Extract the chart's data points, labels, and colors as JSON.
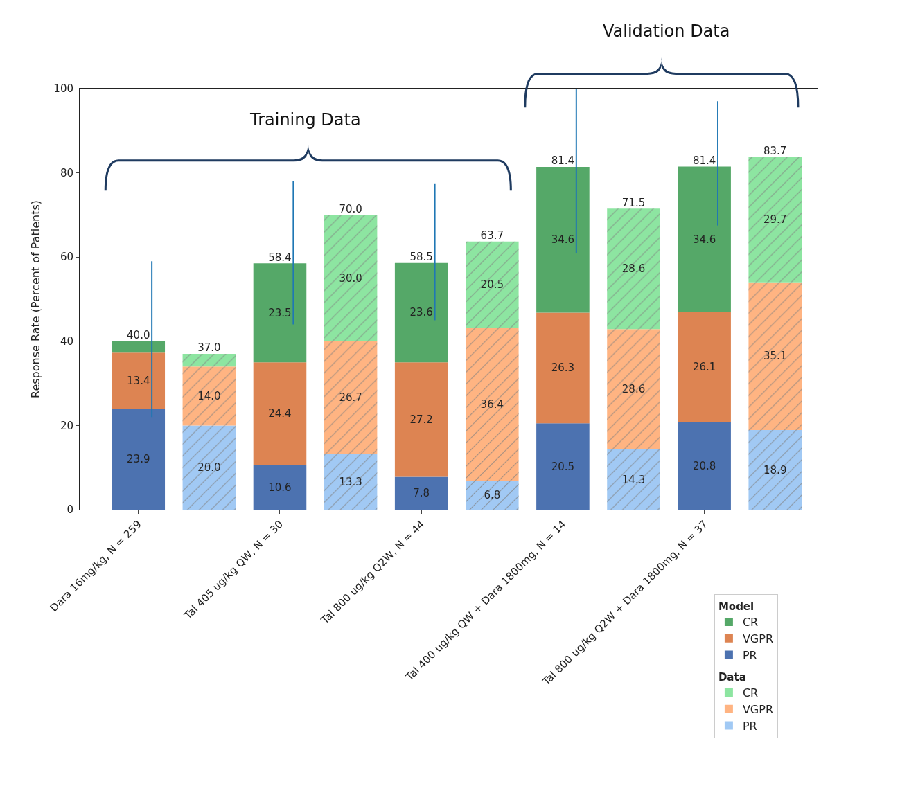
{
  "chart_data": {
    "type": "bar",
    "stacked": true,
    "ylabel": "Response Rate (Percent of Patients)",
    "categories": [
      "Dara 16mg/kg, N = 259",
      null,
      "Tal 405 ug/kg QW, N = 30",
      null,
      "Tal 800 ug/kg Q2W, N = 44",
      null,
      "Tal 400 ug/kg QW + Dara 1800mg, N = 14",
      null,
      "Tal 800 ug/kg Q2W + Dara 1800mg, N = 37",
      null
    ],
    "ylim": [
      0,
      100
    ],
    "yticks": [
      0,
      20,
      40,
      60,
      80,
      100
    ],
    "legend": "bottom right",
    "legend_title": [
      "Model",
      "Data"
    ],
    "series": [
      {
        "name": "PR",
        "color": "#4c72b0",
        "values": [
          23.9,
          null,
          10.6,
          null,
          7.8,
          null,
          20.5,
          null,
          20.8,
          null
        ],
        "value_labels": [
          "23.9",
          null,
          "10.6",
          null,
          "7.8",
          null,
          "20.5",
          null,
          "20.8",
          null
        ]
      },
      {
        "name": "VGPR",
        "color": "#dd8452",
        "values": [
          13.4,
          null,
          24.4,
          null,
          27.2,
          null,
          26.3,
          null,
          26.1,
          null
        ],
        "value_labels": [
          "13.4",
          null,
          "24.4",
          null,
          "27.2",
          null,
          "26.3",
          null,
          "26.1",
          null
        ]
      },
      {
        "name": "CR",
        "color": "#55a868",
        "values": [
          2.7,
          null,
          23.5,
          null,
          23.6,
          null,
          34.6,
          null,
          34.6,
          null
        ],
        "value_labels": [
          null,
          null,
          "23.5",
          null,
          "23.6",
          null,
          "34.6",
          null,
          "34.6",
          null
        ],
        "errors": [
          [
            22,
            59
          ],
          null,
          [
            44,
            78
          ],
          null,
          [
            45,
            77.5
          ],
          null,
          [
            61,
            100
          ],
          null,
          [
            67.5,
            97
          ],
          null
        ]
      },
      {
        "name": "PR",
        "color": "#a1c9f4",
        "values": [
          null,
          20.0,
          null,
          13.3,
          null,
          6.8,
          null,
          14.3,
          null,
          18.9
        ],
        "value_labels": [
          null,
          "20.0",
          null,
          "13.3",
          null,
          "6.8",
          null,
          "14.3",
          null,
          "18.9"
        ]
      },
      {
        "name": "VGPR",
        "color": "#ffb482",
        "values": [
          null,
          14.0,
          null,
          26.7,
          null,
          36.4,
          null,
          28.6,
          null,
          35.1
        ],
        "value_labels": [
          null,
          "14.0",
          null,
          "26.7",
          null,
          "36.4",
          null,
          "28.6",
          null,
          "35.1"
        ]
      },
      {
        "name": "CR",
        "color": "#8de5a1",
        "values": [
          null,
          3.0,
          null,
          30.0,
          null,
          20.5,
          null,
          28.6,
          null,
          29.7
        ],
        "value_labels": [
          null,
          null,
          null,
          "30.0",
          null,
          "20.5",
          null,
          "28.6",
          null,
          "29.7"
        ]
      }
    ],
    "totals": [
      "40.0",
      "37.0",
      "58.4",
      "70.0",
      "58.5",
      "63.7",
      "81.4",
      "71.5",
      "81.4",
      "83.7"
    ],
    "annotations": [
      "Training Data",
      "Validation Data"
    ]
  }
}
